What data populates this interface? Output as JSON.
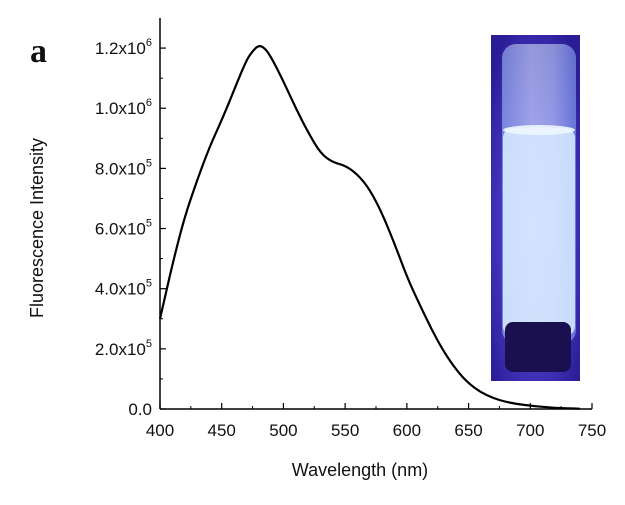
{
  "figure": {
    "panel_letter": "a"
  },
  "chart_data": {
    "type": "line",
    "title": "",
    "xlabel": "Wavelength (nm)",
    "ylabel": "Fluorescence Intensity",
    "xlim": [
      400,
      750
    ],
    "ylim": [
      0,
      1300000
    ],
    "x_ticks": [
      400,
      450,
      500,
      550,
      600,
      650,
      700,
      750
    ],
    "y_ticks": [
      {
        "value": 0,
        "mantissa": "0.0",
        "exponent": ""
      },
      {
        "value": 200000,
        "mantissa": "2.0x10",
        "exponent": "5"
      },
      {
        "value": 400000,
        "mantissa": "4.0x10",
        "exponent": "5"
      },
      {
        "value": 600000,
        "mantissa": "6.0x10",
        "exponent": "5"
      },
      {
        "value": 800000,
        "mantissa": "8.0x10",
        "exponent": "5"
      },
      {
        "value": 1000000,
        "mantissa": "1.0x10",
        "exponent": "6"
      },
      {
        "value": 1200000,
        "mantissa": "1.2x10",
        "exponent": "6"
      }
    ],
    "grid": false,
    "legend": "none",
    "line_color": "#000000",
    "series": [
      {
        "x": [
          400,
          410,
          420,
          430,
          440,
          450,
          460,
          470,
          475,
          480,
          485,
          490,
          500,
          510,
          520,
          530,
          540,
          550,
          560,
          570,
          580,
          590,
          600,
          610,
          620,
          630,
          640,
          650,
          660,
          670,
          680,
          690,
          700,
          710,
          720,
          730,
          740
        ],
        "values": [
          300000,
          480000,
          640000,
          760000,
          870000,
          960000,
          1060000,
          1160000,
          1190000,
          1210000,
          1200000,
          1170000,
          1090000,
          1000000,
          920000,
          850000,
          820000,
          810000,
          780000,
          730000,
          650000,
          550000,
          440000,
          350000,
          265000,
          190000,
          130000,
          85000,
          55000,
          36000,
          24000,
          16000,
          11000,
          7000,
          4000,
          2000,
          1000
        ]
      }
    ]
  },
  "inset_photo": {
    "background_color": "#3a2aa8",
    "glow_color": "#cfe8ff",
    "cap_color": "#1a1050"
  }
}
